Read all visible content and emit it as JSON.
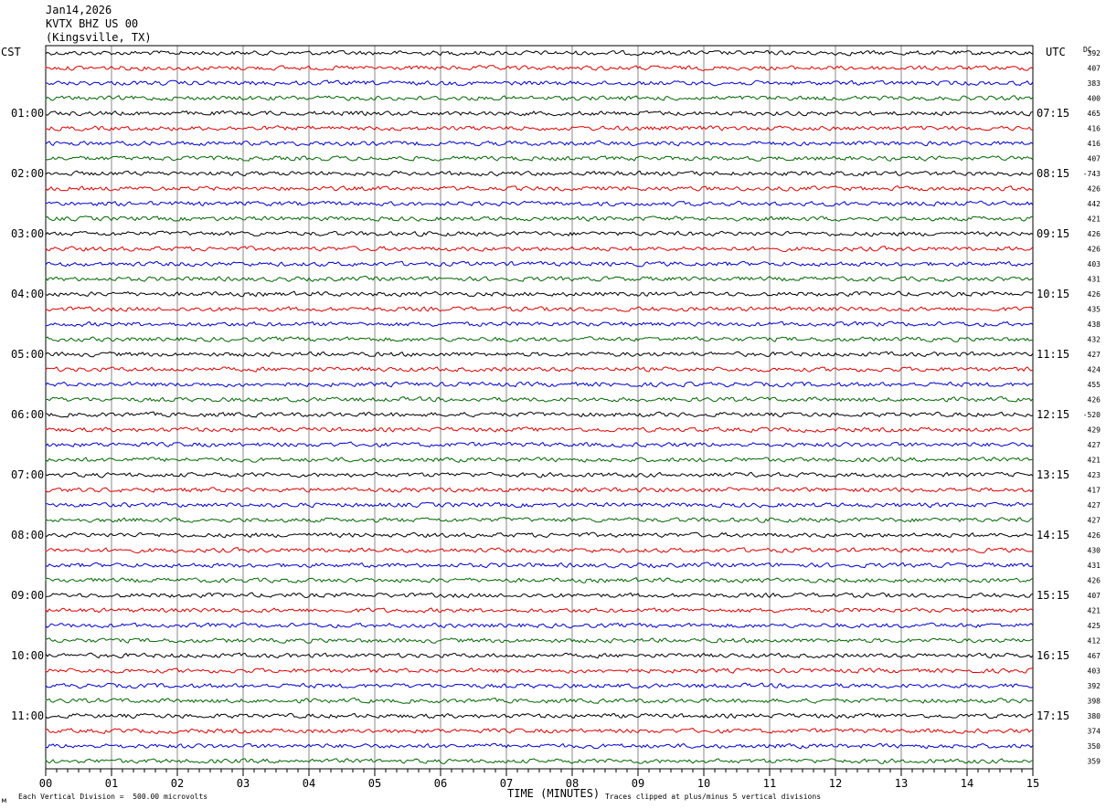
{
  "header": {
    "date": "Jan14,2026",
    "station": "KVTX BHZ US 00",
    "location": "(Kingsville, TX)",
    "left_tz": "CST",
    "right_tz": "UTC",
    "dc_label": "DC"
  },
  "footer": {
    "scale_note": "Each Vertical Division =  500.00 microvolts",
    "clip_note": "Traces clipped at plus/minus 5 vertical divisions",
    "corner_mark": "м"
  },
  "colors": {
    "trace_cycle": [
      "#000000",
      "#dd0000",
      "#0000cc",
      "#006600"
    ],
    "grid": "#888888",
    "frame": "#000000"
  },
  "chart_data": {
    "type": "line",
    "title": "",
    "xlabel": "TIME (MINUTES)",
    "ylabel": "",
    "x_ticks": [
      "00",
      "01",
      "02",
      "03",
      "04",
      "05",
      "06",
      "07",
      "08",
      "09",
      "10",
      "11",
      "12",
      "13",
      "14",
      "15"
    ],
    "xlim": [
      0,
      15
    ],
    "trace_count": 48,
    "minutes_per_trace": 15,
    "left_hour_labels": [
      "01:00",
      "02:00",
      "03:00",
      "04:00",
      "05:00",
      "06:00",
      "07:00",
      "08:00",
      "09:00",
      "10:00",
      "11:00"
    ],
    "right_hour_labels": [
      "07:15",
      "08:15",
      "09:15",
      "10:15",
      "11:15",
      "12:15",
      "13:15",
      "14:15",
      "15:15",
      "16:15",
      "17:15"
    ],
    "dc_offsets": [
      "392",
      "407",
      "383",
      "400",
      "465",
      "416",
      "416",
      "407",
      "-743",
      "426",
      "442",
      "421",
      "426",
      "426",
      "403",
      "431",
      "426",
      "435",
      "438",
      "432",
      "427",
      "424",
      "455",
      "426",
      "-520",
      "429",
      "427",
      "421",
      "423",
      "417",
      "427",
      "427",
      "426",
      "430",
      "431",
      "426",
      "407",
      "421",
      "425",
      "412",
      "467",
      "403",
      "392",
      "398",
      "380",
      "374",
      "350",
      "359"
    ]
  }
}
